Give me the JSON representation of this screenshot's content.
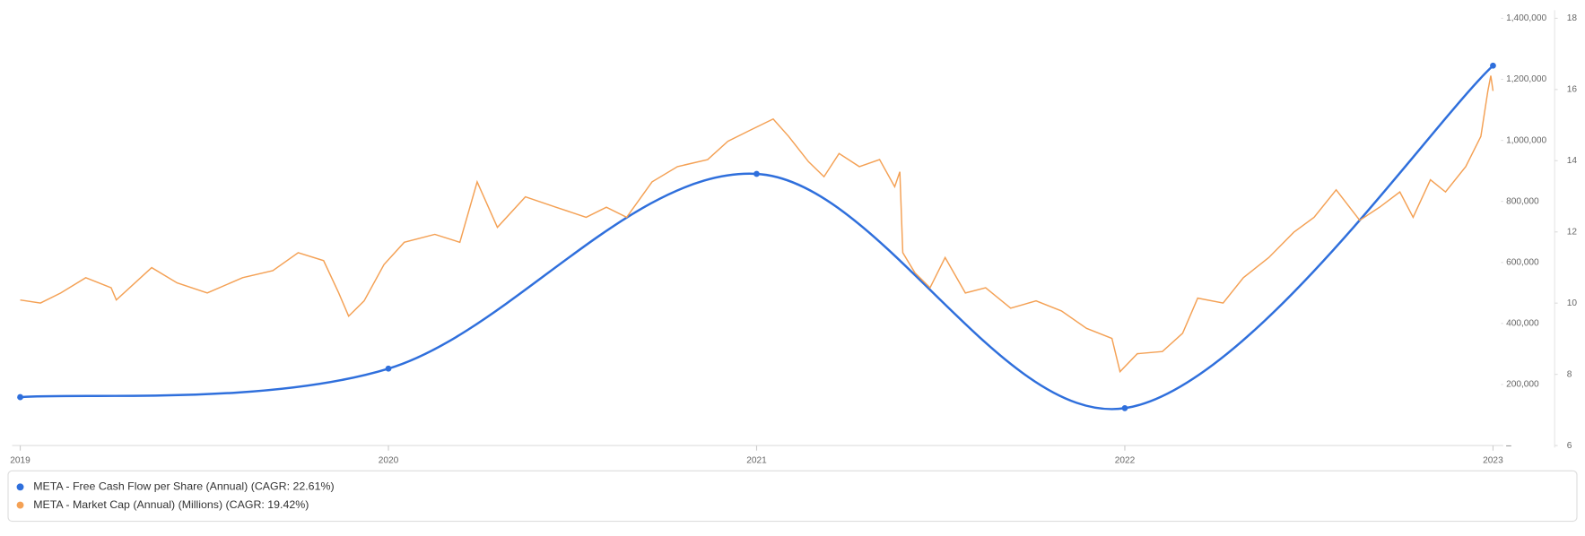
{
  "chart_data": {
    "type": "line",
    "xlim": [
      2019,
      2023
    ],
    "xticks": [
      2019,
      2020,
      2021,
      2022,
      2023
    ],
    "ylim": [
      0,
      1400000
    ],
    "yticks": [
      {
        "value": 0,
        "label": "–"
      },
      {
        "value": 200000,
        "label": "200,000"
      },
      {
        "value": 400000,
        "label": "400,000"
      },
      {
        "value": 600000,
        "label": "600,000"
      },
      {
        "value": 800000,
        "label": "800,000"
      },
      {
        "value": 1000000,
        "label": "1,000,000"
      },
      {
        "value": 1200000,
        "label": "1,200,000"
      },
      {
        "value": 1400000,
        "label": "1,400,000"
      }
    ],
    "y2lim": [
      6,
      18
    ],
    "y2ticks": [
      6,
      8,
      10,
      12,
      14,
      16,
      18
    ],
    "series": [
      {
        "name": "META - Free Cash Flow per Share (Annual) (CAGR: 22.61%)",
        "color": "#2f6fdc",
        "axis": "y2",
        "smooth": true,
        "x": [
          2019,
          2020,
          2021,
          2022,
          2023
        ],
        "values": [
          7.36,
          8.16,
          13.63,
          7.05,
          16.67
        ]
      },
      {
        "name": "META - Market Cap (Annual) (Millions) (CAGR: 19.42%)",
        "color": "#f4a155",
        "x": [
          2019.0,
          2019.055,
          2019.11,
          2019.178,
          2019.247,
          2019.261,
          2019.357,
          2019.426,
          2019.508,
          2019.604,
          2019.686,
          2019.755,
          2019.824,
          2019.865,
          2019.892,
          2019.934,
          2019.988,
          2020.043,
          2020.126,
          2020.194,
          2020.241,
          2020.296,
          2020.372,
          2020.455,
          2020.537,
          2020.592,
          2020.647,
          2020.716,
          2020.785,
          2020.867,
          2020.922,
          2020.977,
          2021.045,
          2021.087,
          2021.141,
          2021.183,
          2021.224,
          2021.279,
          2021.334,
          2021.375,
          2021.389,
          2021.397,
          2021.43,
          2021.471,
          2021.512,
          2021.567,
          2021.622,
          2021.69,
          2021.759,
          2021.828,
          2021.896,
          2021.965,
          2021.987,
          2022.034,
          2022.102,
          2022.157,
          2022.198,
          2022.267,
          2022.322,
          2022.391,
          2022.459,
          2022.514,
          2022.574,
          2022.638,
          2022.692,
          2022.747,
          2022.783,
          2022.83,
          2022.871,
          2022.926,
          2022.967,
          2022.986,
          2022.994,
          2023.0
        ],
        "values": [
          477000,
          467000,
          500000,
          550000,
          517000,
          477000,
          583000,
          533000,
          500000,
          550000,
          573000,
          632000,
          606000,
          500000,
          424000,
          474000,
          593000,
          666000,
          692000,
          666000,
          864000,
          715000,
          815000,
          781000,
          748000,
          781000,
          748000,
          864000,
          914000,
          937000,
          997000,
          1030000,
          1070000,
          1013000,
          930000,
          881000,
          957000,
          914000,
          937000,
          848000,
          897000,
          632000,
          566000,
          517000,
          616000,
          500000,
          517000,
          450000,
          474000,
          441000,
          384000,
          351000,
          242000,
          301000,
          308000,
          368000,
          483000,
          467000,
          550000,
          616000,
          699000,
          748000,
          838000,
          738000,
          781000,
          831000,
          748000,
          871000,
          831000,
          914000,
          1013000,
          1162000,
          1212000,
          1162000
        ]
      }
    ]
  }
}
